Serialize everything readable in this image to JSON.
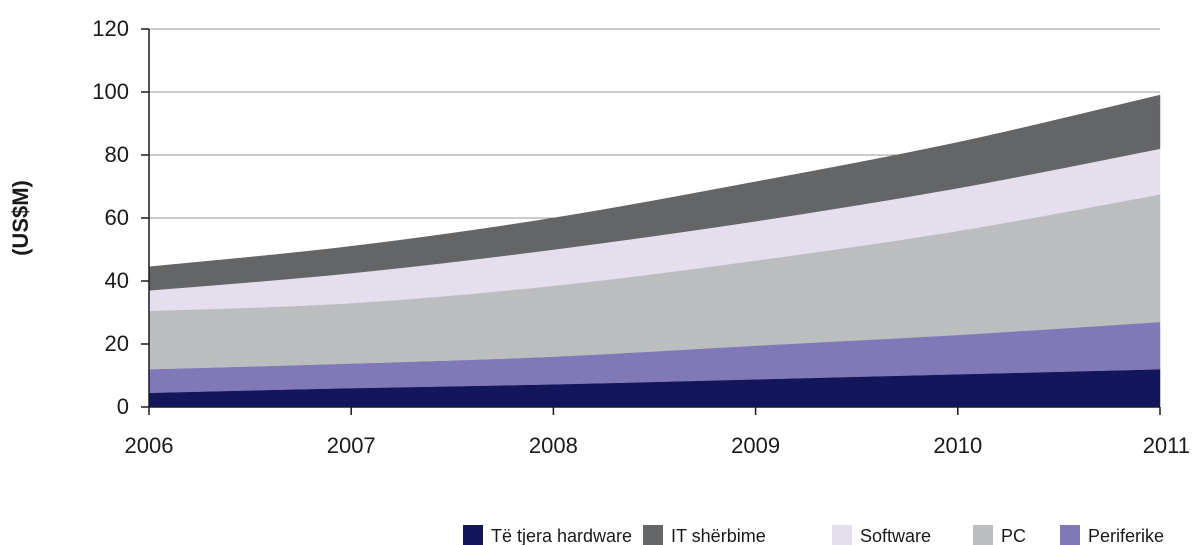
{
  "chart_data": {
    "type": "area",
    "stacked": true,
    "title": "",
    "xlabel": "",
    "ylabel": "(US$M)",
    "x": [
      "2006",
      "2007",
      "2008",
      "2009",
      "2010",
      "2011"
    ],
    "ylim": [
      0,
      120
    ],
    "yticks": [
      "0",
      "20",
      "40",
      "60",
      "80",
      "100",
      "120"
    ],
    "grid": true,
    "legend_position": "bottom-right",
    "series": [
      {
        "name": "Të tjera hardware",
        "color": "#13165a",
        "values": [
          4.5,
          6,
          7.2,
          8.8,
          10.4,
          12
        ]
      },
      {
        "name": "Periferike",
        "color": "#8178b8",
        "values": [
          7.5,
          7.8,
          8.8,
          10.7,
          12.5,
          15
        ]
      },
      {
        "name": "PC",
        "color": "#bcbdbf",
        "values": [
          18.5,
          19.2,
          22.5,
          27,
          33,
          40.5
        ]
      },
      {
        "name": "Software",
        "color": "#e4deed",
        "values": [
          6.5,
          9.5,
          11.5,
          12.5,
          13.6,
          14.5
        ]
      },
      {
        "name": "IT shërbime",
        "color": "#646567",
        "values": [
          7.5,
          8.5,
          10,
          12.5,
          14.5,
          17
        ]
      }
    ],
    "legend_order": [
      "Të tjera hardware",
      "IT shërbime",
      "Software",
      "PC",
      "Periferike"
    ]
  }
}
